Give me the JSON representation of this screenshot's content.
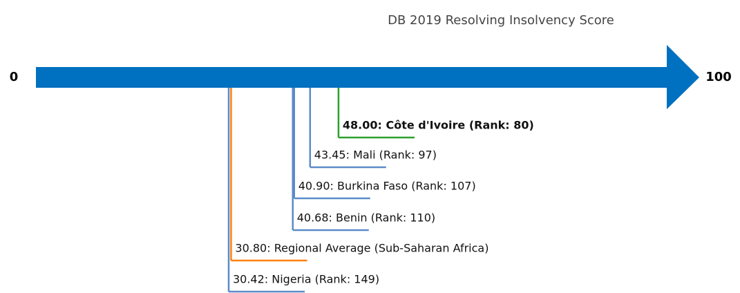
{
  "chart_data": {
    "type": "number-line",
    "title": "DB 2019 Resolving Insolvency Score",
    "xlim": [
      0,
      100
    ],
    "xticks": [
      0,
      100
    ],
    "axis_color": "#0070c0",
    "values": [
      48,
      43.45,
      40.9,
      40.68,
      30.8,
      30.42
    ],
    "value_labels": [
      "48.00: Côte d'Ivoire (Rank: 80)",
      "43.45: Mali (Rank: 97)",
      "40.90: Burkina Faso (Rank: 107)",
      "40.68: Benin (Rank: 110)",
      "30.80: Regional Average (Sub-Saharan Africa)",
      "30.42: Nigeria (Rank: 149)"
    ],
    "colors": [
      "#2ca02c",
      "#5a8bc8",
      "#5a8bc8",
      "#5a8bc8",
      "#ff7f0e",
      "#5a8bc8"
    ],
    "bold": [
      true,
      false,
      false,
      false,
      false,
      false
    ]
  }
}
